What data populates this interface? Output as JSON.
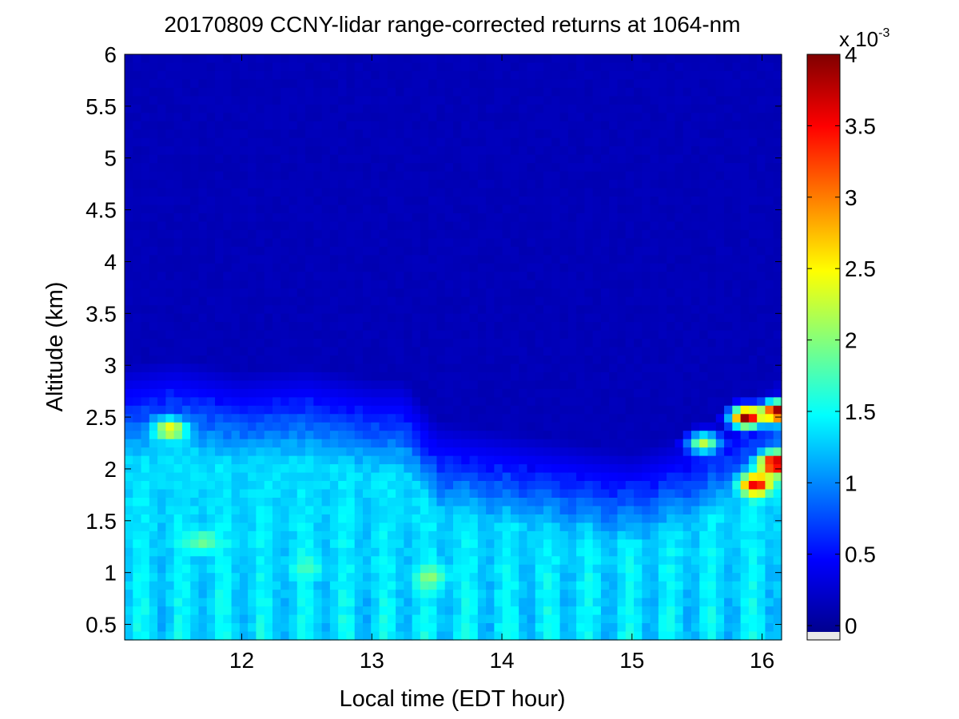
{
  "chart_data": {
    "type": "heatmap",
    "title": "20170809 CCNY-lidar range-corrected returns at 1064-nm",
    "xlabel": "Local time (EDT hour)",
    "ylabel": "Altitude (km)",
    "xlim": [
      11.1,
      16.15
    ],
    "ylim": [
      0.35,
      6.0
    ],
    "x_ticks": [
      12,
      13,
      14,
      15,
      16
    ],
    "y_ticks": [
      0.5,
      1,
      1.5,
      2,
      2.5,
      3,
      3.5,
      4,
      4.5,
      5,
      5.5,
      6
    ],
    "x_tick_labels": [
      "12",
      "13",
      "14",
      "15",
      "16"
    ],
    "y_tick_labels": [
      "0.5",
      "1",
      "1.5",
      "2",
      "2.5",
      "3",
      "3.5",
      "4",
      "4.5",
      "5",
      "5.5",
      "6"
    ],
    "colormap": "jet",
    "colorbar": {
      "range": [
        -0.1,
        4.0
      ],
      "ticks": [
        0,
        0.5,
        1,
        1.5,
        2,
        2.5,
        3,
        3.5,
        4
      ],
      "tick_labels": [
        "0",
        "0.5",
        "1",
        "1.5",
        "2",
        "2.5",
        "3",
        "3.5",
        "4"
      ],
      "exponent_x": "x 10",
      "exponent_power": "-3",
      "units_multiplier": 0.001
    },
    "boundary_layer_top_km": [
      {
        "x": 11.1,
        "y": 2.68
      },
      {
        "x": 11.5,
        "y": 2.75
      },
      {
        "x": 12.0,
        "y": 2.62
      },
      {
        "x": 12.5,
        "y": 2.68
      },
      {
        "x": 13.0,
        "y": 2.55
      },
      {
        "x": 13.25,
        "y": 2.55
      },
      {
        "x": 13.5,
        "y": 2.15
      },
      {
        "x": 14.0,
        "y": 2.05
      },
      {
        "x": 14.5,
        "y": 1.95
      },
      {
        "x": 15.0,
        "y": 1.85
      },
      {
        "x": 15.5,
        "y": 2.05
      },
      {
        "x": 15.8,
        "y": 2.25
      },
      {
        "x": 16.15,
        "y": 2.6
      }
    ],
    "free_troposphere_value": 0.1,
    "residual_layer_value": 0.45,
    "aerosol_layer_value": 1.3,
    "features": [
      {
        "x": 11.45,
        "y": 2.38,
        "value": 2.5
      },
      {
        "x": 11.7,
        "y": 1.3,
        "value": 1.9
      },
      {
        "x": 12.5,
        "y": 1.05,
        "value": 1.7
      },
      {
        "x": 13.45,
        "y": 0.95,
        "value": 2.0
      },
      {
        "x": 15.55,
        "y": 2.25,
        "value": 2.2
      },
      {
        "x": 15.95,
        "y": 1.85,
        "value": 3.6
      },
      {
        "x": 16.1,
        "y": 2.05,
        "value": 4.0
      },
      {
        "x": 15.88,
        "y": 2.5,
        "value": 4.0
      },
      {
        "x": 16.12,
        "y": 2.55,
        "value": 4.0
      }
    ]
  }
}
